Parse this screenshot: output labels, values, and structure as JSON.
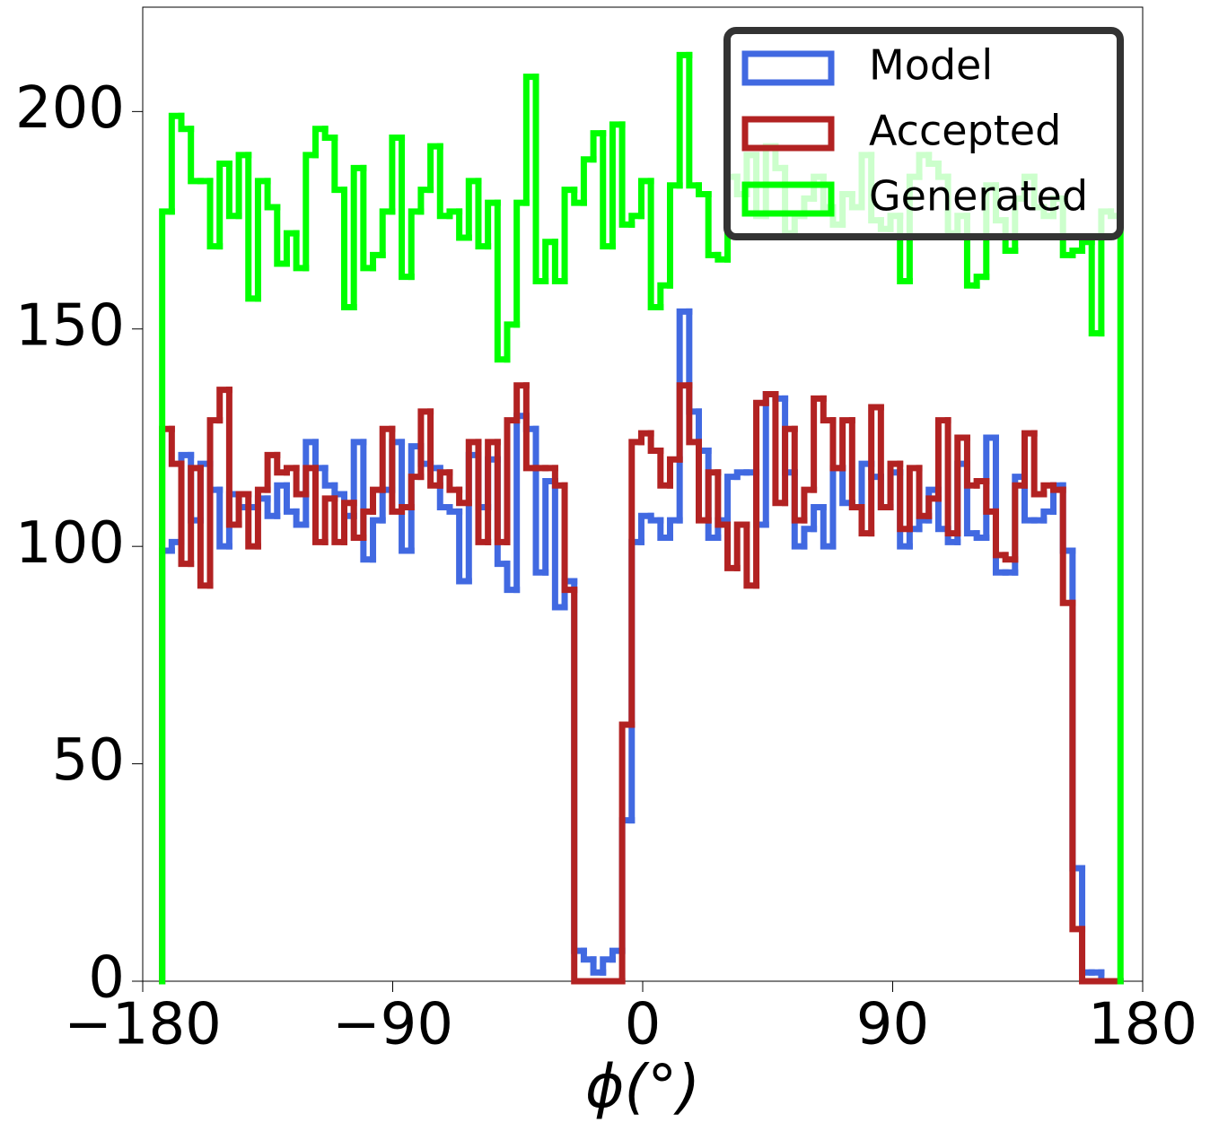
{
  "chart_data": {
    "type": "histogram",
    "xlabel": "ϕ(°)",
    "xlim": [
      -180,
      180
    ],
    "xticks": [
      {
        "value": -180,
        "label": "−180"
      },
      {
        "value": -90,
        "label": "−90"
      },
      0,
      90,
      180
    ],
    "ylim": [
      0,
      224
    ],
    "yticks": [
      0,
      50,
      100,
      150,
      200
    ],
    "legend": "upper right",
    "bins": [
      -173,
      -169.55,
      -166.1,
      -162.65,
      -159.2,
      -155.75,
      -152.3,
      -148.85,
      -145.4,
      -141.95,
      -138.5,
      -135.05,
      -131.6,
      -128.15,
      -124.7,
      -121.25,
      -117.8,
      -114.35,
      -110.9,
      -107.45,
      -104,
      -100.55,
      -97.1,
      -93.65,
      -90.2,
      -86.75,
      -83.3,
      -79.85,
      -76.4,
      -72.95,
      -69.5,
      -66.05,
      -62.6,
      -59.15,
      -55.7,
      -52.25,
      -48.8,
      -45.35,
      -41.9,
      -38.45,
      -35,
      -31.55,
      -28.1,
      -24.65,
      -21.2,
      -17.75,
      -14.3,
      -10.85,
      -7.4,
      -3.95,
      -0.5,
      2.95,
      6.4,
      9.85,
      13.3,
      16.75,
      20.2,
      23.65,
      27.1,
      30.55,
      34,
      37.45,
      40.9,
      44.35,
      47.8,
      51.25,
      54.7,
      58.15,
      61.6,
      65.05,
      68.5,
      71.95,
      75.4,
      78.85,
      82.3,
      85.75,
      89.2,
      92.65,
      96.1,
      99.55,
      103,
      106.45,
      109.9,
      113.35,
      116.8,
      120.25,
      123.7,
      127.15,
      130.6,
      134.05,
      137.5,
      140.95,
      144.4,
      147.85,
      151.3,
      154.75,
      158.2,
      161.65,
      165.1,
      168.55,
      172
    ],
    "series": [
      {
        "name": "Model",
        "color": "#4169e1",
        "values": [
          99,
          101,
          121,
          106,
          119,
          113,
          100,
          112,
          109,
          109,
          111,
          107,
          114,
          108,
          105,
          124,
          118,
          114,
          112,
          107,
          124,
          97,
          106,
          113,
          124,
          99,
          123,
          119,
          118,
          109,
          108,
          92,
          121,
          109,
          120,
          96,
          90,
          130,
          127,
          94,
          115,
          86,
          92,
          7,
          5,
          2,
          5,
          7,
          37,
          101,
          107,
          106,
          102,
          106,
          154,
          131,
          122,
          102,
          106,
          116,
          117,
          117,
          105,
          135,
          134,
          117,
          100,
          104,
          109,
          100,
          118,
          110,
          109,
          119,
          116,
          109,
          117,
          100,
          104,
          106,
          113,
          104,
          101,
          119,
          103,
          102,
          125,
          94,
          94,
          116,
          106,
          106,
          108,
          114,
          99,
          26,
          2,
          2,
          0,
          0
        ]
      },
      {
        "name": "Accepted",
        "color": "#b22222",
        "values": [
          127,
          119,
          96,
          118,
          91,
          129,
          136,
          105,
          112,
          100,
          113,
          121,
          117,
          118,
          112,
          118,
          101,
          111,
          101,
          110,
          102,
          108,
          113,
          127,
          108,
          109,
          116,
          131,
          114,
          117,
          113,
          110,
          124,
          101,
          124,
          101,
          129,
          137,
          118,
          118,
          118,
          114,
          90,
          0,
          0,
          0,
          0,
          0,
          59,
          124,
          126,
          122,
          114,
          120,
          137,
          124,
          106,
          117,
          105,
          95,
          105,
          91,
          133,
          135,
          110,
          127,
          106,
          113,
          134,
          129,
          118,
          129,
          109,
          103,
          132,
          109,
          119,
          104,
          118,
          107,
          111,
          129,
          103,
          125,
          114,
          115,
          108,
          98,
          97,
          114,
          126,
          112,
          114,
          113,
          87,
          12,
          0,
          0,
          0,
          0
        ]
      },
      {
        "name": "Generated",
        "color": "#00ff00",
        "values": [
          177,
          199,
          196,
          184,
          184,
          169,
          188,
          176,
          190,
          157,
          184,
          178,
          165,
          172,
          164,
          190,
          196,
          194,
          182,
          155,
          187,
          164,
          167,
          177,
          194,
          162,
          177,
          182,
          192,
          176,
          177,
          171,
          184,
          169,
          179,
          143,
          151,
          179,
          208,
          161,
          170,
          161,
          182,
          179,
          189,
          195,
          169,
          197,
          174,
          176,
          184,
          155,
          160,
          183,
          213,
          183,
          181,
          167,
          166,
          185,
          181,
          190,
          176,
          192,
          187,
          172,
          176,
          180,
          185,
          178,
          174,
          181,
          178,
          190,
          175,
          173,
          176,
          161,
          185,
          190,
          188,
          185,
          172,
          176,
          160,
          162,
          183,
          175,
          168,
          180,
          185,
          178,
          176,
          180,
          167,
          168,
          170,
          149,
          177,
          176
        ]
      }
    ]
  }
}
